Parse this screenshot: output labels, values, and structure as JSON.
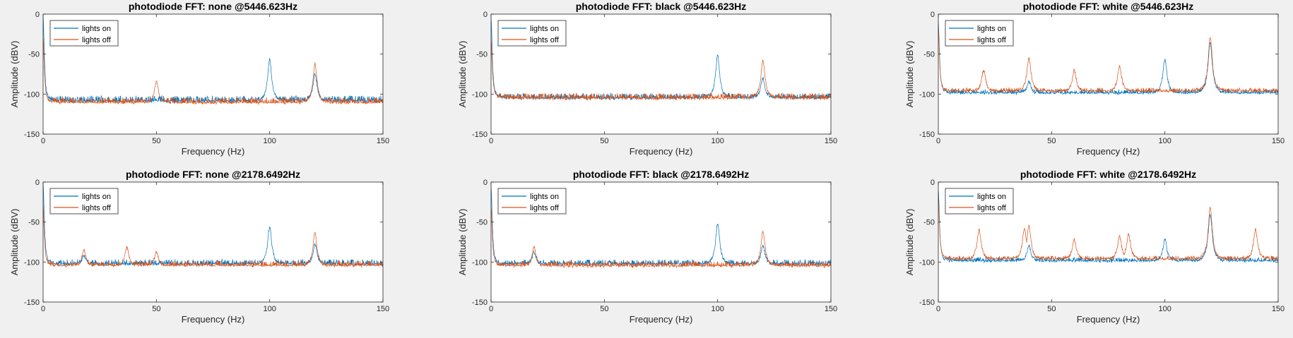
{
  "colors": {
    "lights_on": "#0072BD",
    "lights_off": "#D95319",
    "background": "#f0f0f0"
  },
  "chart_data": [
    {
      "type": "line",
      "title": "photodiode FFT: none @5446.623Hz",
      "xlabel": "Frequency (Hz)",
      "ylabel": "Amplitude (dBV)",
      "xlim": [
        0,
        150
      ],
      "ylim": [
        -150,
        0
      ],
      "xticks": [
        0,
        50,
        100,
        150
      ],
      "yticks": [
        0,
        -50,
        -100,
        -150
      ],
      "grid": false,
      "legend": "top-left",
      "series": [
        {
          "name": "lights on",
          "noise_floor": -110,
          "noise_spread": 16,
          "peaks": [
            [
              0,
              -2
            ],
            [
              100,
              -57
            ],
            [
              120,
              -75
            ]
          ]
        },
        {
          "name": "lights off",
          "noise_floor": -112,
          "noise_spread": 16,
          "peaks": [
            [
              0,
              -30
            ],
            [
              50,
              -85
            ],
            [
              120,
              -62
            ]
          ]
        }
      ]
    },
    {
      "type": "line",
      "title": "photodiode FFT: black @5446.623Hz",
      "xlabel": "Frequency (Hz)",
      "ylabel": "Amplitude (dBV)",
      "xlim": [
        0,
        150
      ],
      "ylim": [
        -150,
        0
      ],
      "xticks": [
        0,
        50,
        100,
        150
      ],
      "yticks": [
        0,
        -50,
        -100,
        -150
      ],
      "grid": false,
      "legend": "top-left",
      "series": [
        {
          "name": "lights on",
          "noise_floor": -106,
          "noise_spread": 14,
          "peaks": [
            [
              0,
              -5
            ],
            [
              100,
              -52
            ],
            [
              120,
              -80
            ]
          ]
        },
        {
          "name": "lights off",
          "noise_floor": -106,
          "noise_spread": 14,
          "peaks": [
            [
              0,
              -30
            ],
            [
              120,
              -58
            ]
          ]
        }
      ]
    },
    {
      "type": "line",
      "title": "photodiode FFT: white @5446.623Hz",
      "xlabel": "Frequency (Hz)",
      "ylabel": "Amplitude (dBV)",
      "xlim": [
        0,
        150
      ],
      "ylim": [
        -150,
        0
      ],
      "xticks": [
        0,
        50,
        100,
        150
      ],
      "yticks": [
        0,
        -50,
        -100,
        -150
      ],
      "grid": false,
      "legend": "top-left",
      "series": [
        {
          "name": "lights on",
          "noise_floor": -100,
          "noise_spread": 12,
          "peaks": [
            [
              0,
              -10
            ],
            [
              40,
              -85
            ],
            [
              100,
              -57
            ],
            [
              120,
              -35
            ]
          ]
        },
        {
          "name": "lights off",
          "noise_floor": -98,
          "noise_spread": 12,
          "peaks": [
            [
              0,
              -20
            ],
            [
              20,
              -70
            ],
            [
              40,
              -55
            ],
            [
              60,
              -70
            ],
            [
              80,
              -65
            ],
            [
              120,
              -28
            ]
          ]
        }
      ]
    },
    {
      "type": "line",
      "title": "photodiode FFT: none @2178.6492Hz",
      "xlabel": "Frequency (Hz)",
      "ylabel": "Amplitude (dBV)",
      "xlim": [
        0,
        150
      ],
      "ylim": [
        -150,
        0
      ],
      "xticks": [
        0,
        50,
        100,
        150
      ],
      "yticks": [
        0,
        -50,
        -100,
        -150
      ],
      "grid": false,
      "legend": "top-left",
      "series": [
        {
          "name": "lights on",
          "noise_floor": -104,
          "noise_spread": 15,
          "peaks": [
            [
              0,
              -2
            ],
            [
              18,
              -92
            ],
            [
              100,
              -56
            ],
            [
              120,
              -78
            ]
          ]
        },
        {
          "name": "lights off",
          "noise_floor": -106,
          "noise_spread": 15,
          "peaks": [
            [
              0,
              -30
            ],
            [
              18,
              -85
            ],
            [
              37,
              -82
            ],
            [
              50,
              -87
            ],
            [
              120,
              -64
            ]
          ]
        }
      ]
    },
    {
      "type": "line",
      "title": "photodiode FFT: black @2178.6492Hz",
      "xlabel": "Frequency (Hz)",
      "ylabel": "Amplitude (dBV)",
      "xlim": [
        0,
        150
      ],
      "ylim": [
        -150,
        0
      ],
      "xticks": [
        0,
        50,
        100,
        150
      ],
      "yticks": [
        0,
        -50,
        -100,
        -150
      ],
      "grid": false,
      "legend": "top-left",
      "series": [
        {
          "name": "lights on",
          "noise_floor": -104,
          "noise_spread": 14,
          "peaks": [
            [
              0,
              -5
            ],
            [
              19,
              -88
            ],
            [
              100,
              -52
            ],
            [
              120,
              -80
            ]
          ]
        },
        {
          "name": "lights off",
          "noise_floor": -106,
          "noise_spread": 14,
          "peaks": [
            [
              0,
              -30
            ],
            [
              19,
              -82
            ],
            [
              120,
              -62
            ]
          ]
        }
      ]
    },
    {
      "type": "line",
      "title": "photodiode FFT: white @2178.6492Hz",
      "xlabel": "Frequency (Hz)",
      "ylabel": "Amplitude (dBV)",
      "xlim": [
        0,
        150
      ],
      "ylim": [
        -150,
        0
      ],
      "xticks": [
        0,
        50,
        100,
        150
      ],
      "yticks": [
        0,
        -50,
        -100,
        -150
      ],
      "grid": false,
      "legend": "top-left",
      "series": [
        {
          "name": "lights on",
          "noise_floor": -100,
          "noise_spread": 12,
          "peaks": [
            [
              0,
              -10
            ],
            [
              40,
              -80
            ],
            [
              100,
              -72
            ],
            [
              120,
              -40
            ]
          ]
        },
        {
          "name": "lights off",
          "noise_floor": -98,
          "noise_spread": 12,
          "peaks": [
            [
              0,
              -20
            ],
            [
              18,
              -60
            ],
            [
              38,
              -58
            ],
            [
              40,
              -55
            ],
            [
              60,
              -72
            ],
            [
              80,
              -68
            ],
            [
              84,
              -65
            ],
            [
              120,
              -33
            ],
            [
              140,
              -60
            ]
          ]
        }
      ]
    }
  ]
}
